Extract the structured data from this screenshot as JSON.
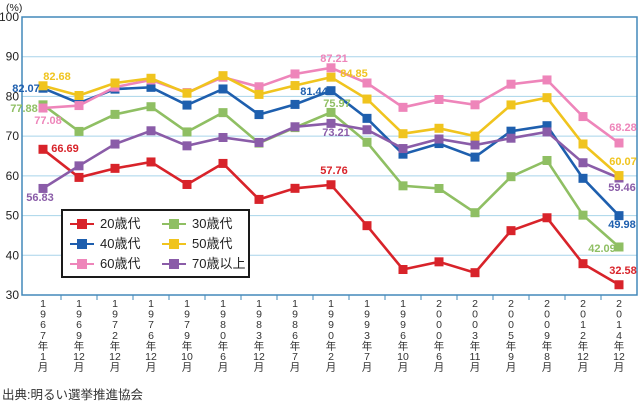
{
  "y_axis_unit_label": "(%)",
  "source": "出典:明るい選挙推進協会",
  "chart_data": {
    "type": "line",
    "title": "",
    "xlabel": "",
    "ylabel": "(%)",
    "ylim": [
      30,
      100
    ],
    "y_ticks": [
      100,
      90,
      80,
      70,
      60,
      50,
      40,
      30
    ],
    "grid": true,
    "legend_position": "inside-lower-left",
    "marker": "square",
    "categories": [
      "1967年1月",
      "1969年12月",
      "1972年12月",
      "1976年12月",
      "1979年10月",
      "1980年6月",
      "1983年12月",
      "1986年7月",
      "1990年2月",
      "1993年7月",
      "1996年10月",
      "2000年6月",
      "2003年11月",
      "2005年9月",
      "2009年8月",
      "2012年12月",
      "2014年12月"
    ],
    "series": [
      {
        "name": "20歳代",
        "color": "#d8232a",
        "values": [
          66.69,
          59.61,
          61.89,
          63.5,
          57.83,
          63.13,
          54.07,
          56.86,
          57.76,
          47.46,
          36.42,
          38.35,
          35.62,
          46.2,
          49.45,
          37.89,
          32.58
        ]
      },
      {
        "name": "30歳代",
        "color": "#8fbf63",
        "values": [
          77.88,
          71.19,
          75.48,
          77.41,
          71.06,
          75.92,
          68.25,
          72.15,
          75.97,
          68.46,
          57.49,
          56.82,
          50.72,
          59.79,
          63.87,
          50.1,
          42.09
        ]
      },
      {
        "name": "40歳代",
        "color": "#1e5fae",
        "values": [
          82.07,
          78.33,
          81.84,
          82.29,
          77.82,
          81.88,
          75.43,
          77.99,
          81.44,
          74.48,
          65.46,
          68.13,
          64.72,
          71.25,
          72.63,
          59.38,
          49.98
        ]
      },
      {
        "name": "50歳代",
        "color": "#f0c41e",
        "values": [
          82.68,
          80.23,
          83.38,
          84.57,
          80.82,
          85.23,
          80.51,
          82.74,
          84.85,
          79.34,
          70.61,
          71.98,
          70.01,
          77.86,
          79.69,
          68.02,
          60.07
        ]
      },
      {
        "name": "60歳代",
        "color": "#ee85ba",
        "values": [
          77.08,
          77.7,
          82.34,
          84.13,
          80.97,
          84.84,
          82.43,
          85.66,
          87.21,
          83.38,
          77.25,
          79.23,
          77.89,
          83.08,
          84.15,
          74.93,
          68.28
        ]
      },
      {
        "name": "70歳以上",
        "color": "#8a5ca8",
        "values": [
          56.83,
          62.52,
          68.01,
          71.35,
          67.56,
          69.66,
          68.41,
          72.36,
          73.21,
          71.61,
          66.88,
          69.28,
          67.78,
          69.48,
          71.06,
          63.3,
          59.46
        ]
      }
    ],
    "annotations": [
      {
        "series": "40歳代",
        "index": 0,
        "text": "82.07"
      },
      {
        "series": "50歳代",
        "index": 0,
        "text": "82.68"
      },
      {
        "series": "30歳代",
        "index": 0,
        "text": "77.88"
      },
      {
        "series": "60歳代",
        "index": 0,
        "text": "77.08"
      },
      {
        "series": "20歳代",
        "index": 0,
        "text": "66.69"
      },
      {
        "series": "70歳以上",
        "index": 0,
        "text": "56.83"
      },
      {
        "series": "60歳代",
        "index": 8,
        "text": "87.21"
      },
      {
        "series": "50歳代",
        "index": 8,
        "text": "84.85"
      },
      {
        "series": "40歳代",
        "index": 8,
        "text": "81.44"
      },
      {
        "series": "30歳代",
        "index": 8,
        "text": "75.97"
      },
      {
        "series": "70歳以上",
        "index": 8,
        "text": "73.21"
      },
      {
        "series": "20歳代",
        "index": 8,
        "text": "57.76"
      },
      {
        "series": "60歳代",
        "index": 16,
        "text": "68.28"
      },
      {
        "series": "50歳代",
        "index": 16,
        "text": "60.07"
      },
      {
        "series": "70歳以上",
        "index": 16,
        "text": "59.46"
      },
      {
        "series": "40歳代",
        "index": 16,
        "text": "49.98"
      },
      {
        "series": "30歳代",
        "index": 16,
        "text": "42.09"
      },
      {
        "series": "20歳代",
        "index": 16,
        "text": "32.58"
      }
    ],
    "legend_labels": [
      "20歳代",
      "30歳代",
      "40歳代",
      "50歳代",
      "60歳代",
      "70歳以上"
    ]
  },
  "style_colors": {
    "plot_border": "#4288ba",
    "gridline": "#a8d4ea",
    "tick": "#4288ba",
    "text": "#333333"
  }
}
